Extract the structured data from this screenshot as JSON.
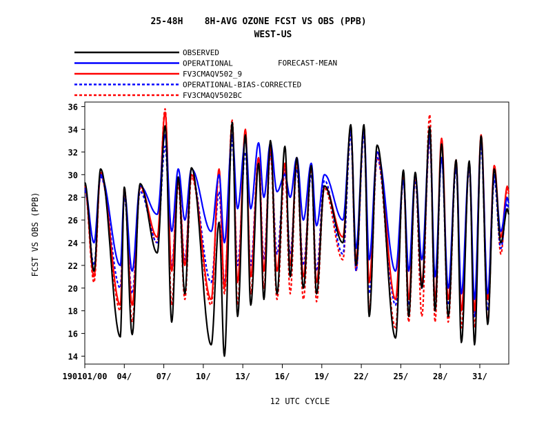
{
  "chart_data": {
    "type": "line",
    "title": "25-48H    8H-AVG OZONE FCST VS OBS (PPB)",
    "subtitle": "WEST-US",
    "xlabel": "12 UTC CYCLE",
    "ylabel": "FCST VS OBS (PPB)",
    "ylim": [
      13.3,
      36.4
    ],
    "xlim": [
      0,
      32.2
    ],
    "y_ticks": [
      14,
      16,
      18,
      20,
      22,
      24,
      26,
      28,
      30,
      32,
      34,
      36
    ],
    "x_ticks": [
      {
        "x": 0,
        "label": "190101/00"
      },
      {
        "x": 3,
        "label": "04/"
      },
      {
        "x": 6,
        "label": "07/"
      },
      {
        "x": 9,
        "label": "10/"
      },
      {
        "x": 12,
        "label": "13/"
      },
      {
        "x": 15,
        "label": "16/"
      },
      {
        "x": 18,
        "label": "19/"
      },
      {
        "x": 21,
        "label": "22/"
      },
      {
        "x": 24,
        "label": "25/"
      },
      {
        "x": 27,
        "label": "28/"
      },
      {
        "x": 30,
        "label": "31/"
      }
    ],
    "legend_position": "top-left",
    "legend_note": "FORECAST-MEAN",
    "series": [
      {
        "name": "OBSERVED",
        "color": "#000000",
        "dash": "solid",
        "peaks": [
          30.5,
          28.9,
          29.2,
          34.3,
          29.8,
          30.6,
          25.8,
          34.6,
          33.5,
          31.0,
          33.0,
          32.5,
          31.5,
          30.8,
          29.0,
          34.4,
          34.4,
          32.6,
          30.4,
          30.2,
          34.2,
          32.7,
          31.3,
          31.2,
          33.4,
          30.5,
          27.0
        ],
        "troughs": [
          21.5,
          15.7,
          15.9,
          23.1,
          17.0,
          19.5,
          15.0,
          14.0,
          17.5,
          18.5,
          19.0,
          19.5,
          21.0,
          20.0,
          19.5,
          24.0,
          22.0,
          17.5,
          15.6,
          17.5,
          20.0,
          18.0,
          17.5,
          15.2,
          15.0,
          16.8,
          24.0
        ]
      },
      {
        "name": "OPERATIONAL",
        "color": "#0000ff",
        "dash": "solid",
        "peaks": [
          30.0,
          28.5,
          29.0,
          33.5,
          30.5,
          30.5,
          30.0,
          33.5,
          33.0,
          32.8,
          32.8,
          30.0,
          31.5,
          31.0,
          30.0,
          34.0,
          34.0,
          32.0,
          29.5,
          30.0,
          33.5,
          31.5,
          31.0,
          31.0,
          33.0,
          30.0,
          28.0
        ],
        "troughs": [
          24.0,
          22.0,
          21.5,
          26.5,
          25.0,
          26.0,
          25.0,
          24.0,
          27.0,
          27.0,
          28.0,
          28.5,
          28.0,
          26.0,
          25.5,
          26.0,
          23.5,
          22.5,
          21.5,
          21.5,
          22.5,
          21.0,
          20.0,
          19.5,
          19.0,
          19.5,
          25.0
        ]
      },
      {
        "name": "FV3CMAQV502_9",
        "color": "#ff0000",
        "dash": "solid",
        "peaks": [
          30.2,
          28.8,
          29.0,
          35.5,
          29.5,
          30.0,
          30.5,
          34.5,
          34.0,
          31.5,
          32.5,
          31.0,
          31.5,
          30.8,
          29.0,
          34.2,
          34.2,
          32.0,
          30.0,
          30.0,
          33.5,
          33.2,
          31.3,
          31.0,
          33.5,
          30.8,
          29.0
        ],
        "troughs": [
          21.0,
          18.5,
          18.5,
          24.5,
          21.5,
          22.0,
          19.0,
          20.0,
          20.5,
          21.0,
          21.5,
          21.5,
          22.0,
          21.0,
          20.5,
          24.5,
          22.5,
          20.5,
          19.0,
          19.0,
          20.5,
          19.0,
          19.0,
          18.0,
          18.0,
          19.0,
          24.5
        ]
      },
      {
        "name": "OPERATIONAL-BIAS-CORRECTED",
        "color": "#0000ff",
        "dash": "dashed",
        "peaks": [
          29.8,
          28.0,
          28.5,
          32.5,
          29.5,
          30.0,
          28.5,
          33.0,
          32.0,
          31.5,
          32.0,
          30.5,
          30.5,
          30.0,
          29.5,
          33.5,
          33.5,
          31.5,
          29.5,
          29.5,
          33.0,
          31.5,
          30.5,
          30.5,
          32.5,
          29.5,
          27.5
        ],
        "troughs": [
          22.0,
          20.0,
          19.5,
          24.0,
          22.0,
          22.5,
          20.5,
          20.5,
          22.0,
          22.0,
          22.5,
          23.0,
          23.0,
          22.0,
          21.5,
          23.0,
          21.5,
          19.5,
          18.5,
          18.5,
          20.0,
          19.0,
          18.5,
          18.0,
          17.5,
          18.0,
          23.5
        ]
      },
      {
        "name": "FV3CMAQV502BC",
        "color": "#ff0000",
        "dash": "dashed",
        "peaks": [
          30.0,
          28.5,
          28.8,
          35.8,
          29.2,
          29.8,
          30.2,
          34.8,
          33.8,
          31.0,
          32.0,
          30.5,
          31.0,
          30.5,
          28.8,
          34.0,
          34.0,
          31.5,
          29.8,
          29.8,
          35.3,
          32.8,
          31.0,
          30.8,
          33.2,
          30.5,
          28.8
        ],
        "troughs": [
          20.5,
          18.0,
          17.0,
          24.0,
          18.5,
          19.0,
          18.5,
          19.5,
          18.5,
          19.5,
          20.0,
          19.0,
          19.5,
          19.0,
          18.8,
          22.5,
          21.5,
          18.0,
          16.5,
          17.0,
          17.5,
          17.0,
          17.0,
          16.5,
          16.5,
          17.0,
          23.0
        ]
      }
    ],
    "peak_x": [
      1.2,
      3.0,
      4.2,
      6.1,
      7.1,
      8.1,
      10.2,
      11.2,
      12.2,
      13.2,
      14.1,
      15.2,
      16.1,
      17.2,
      18.2,
      20.2,
      21.2,
      22.2,
      24.2,
      25.1,
      26.2,
      27.1,
      28.2,
      29.2,
      30.1,
      31.1,
      32.1
    ],
    "trough_x": [
      0.7,
      2.7,
      3.6,
      5.5,
      6.6,
      7.6,
      9.6,
      10.6,
      11.6,
      12.6,
      13.6,
      14.6,
      15.6,
      16.6,
      17.6,
      19.6,
      20.6,
      21.6,
      23.6,
      24.6,
      25.6,
      26.6,
      27.6,
      28.6,
      29.6,
      30.6,
      31.6
    ]
  }
}
